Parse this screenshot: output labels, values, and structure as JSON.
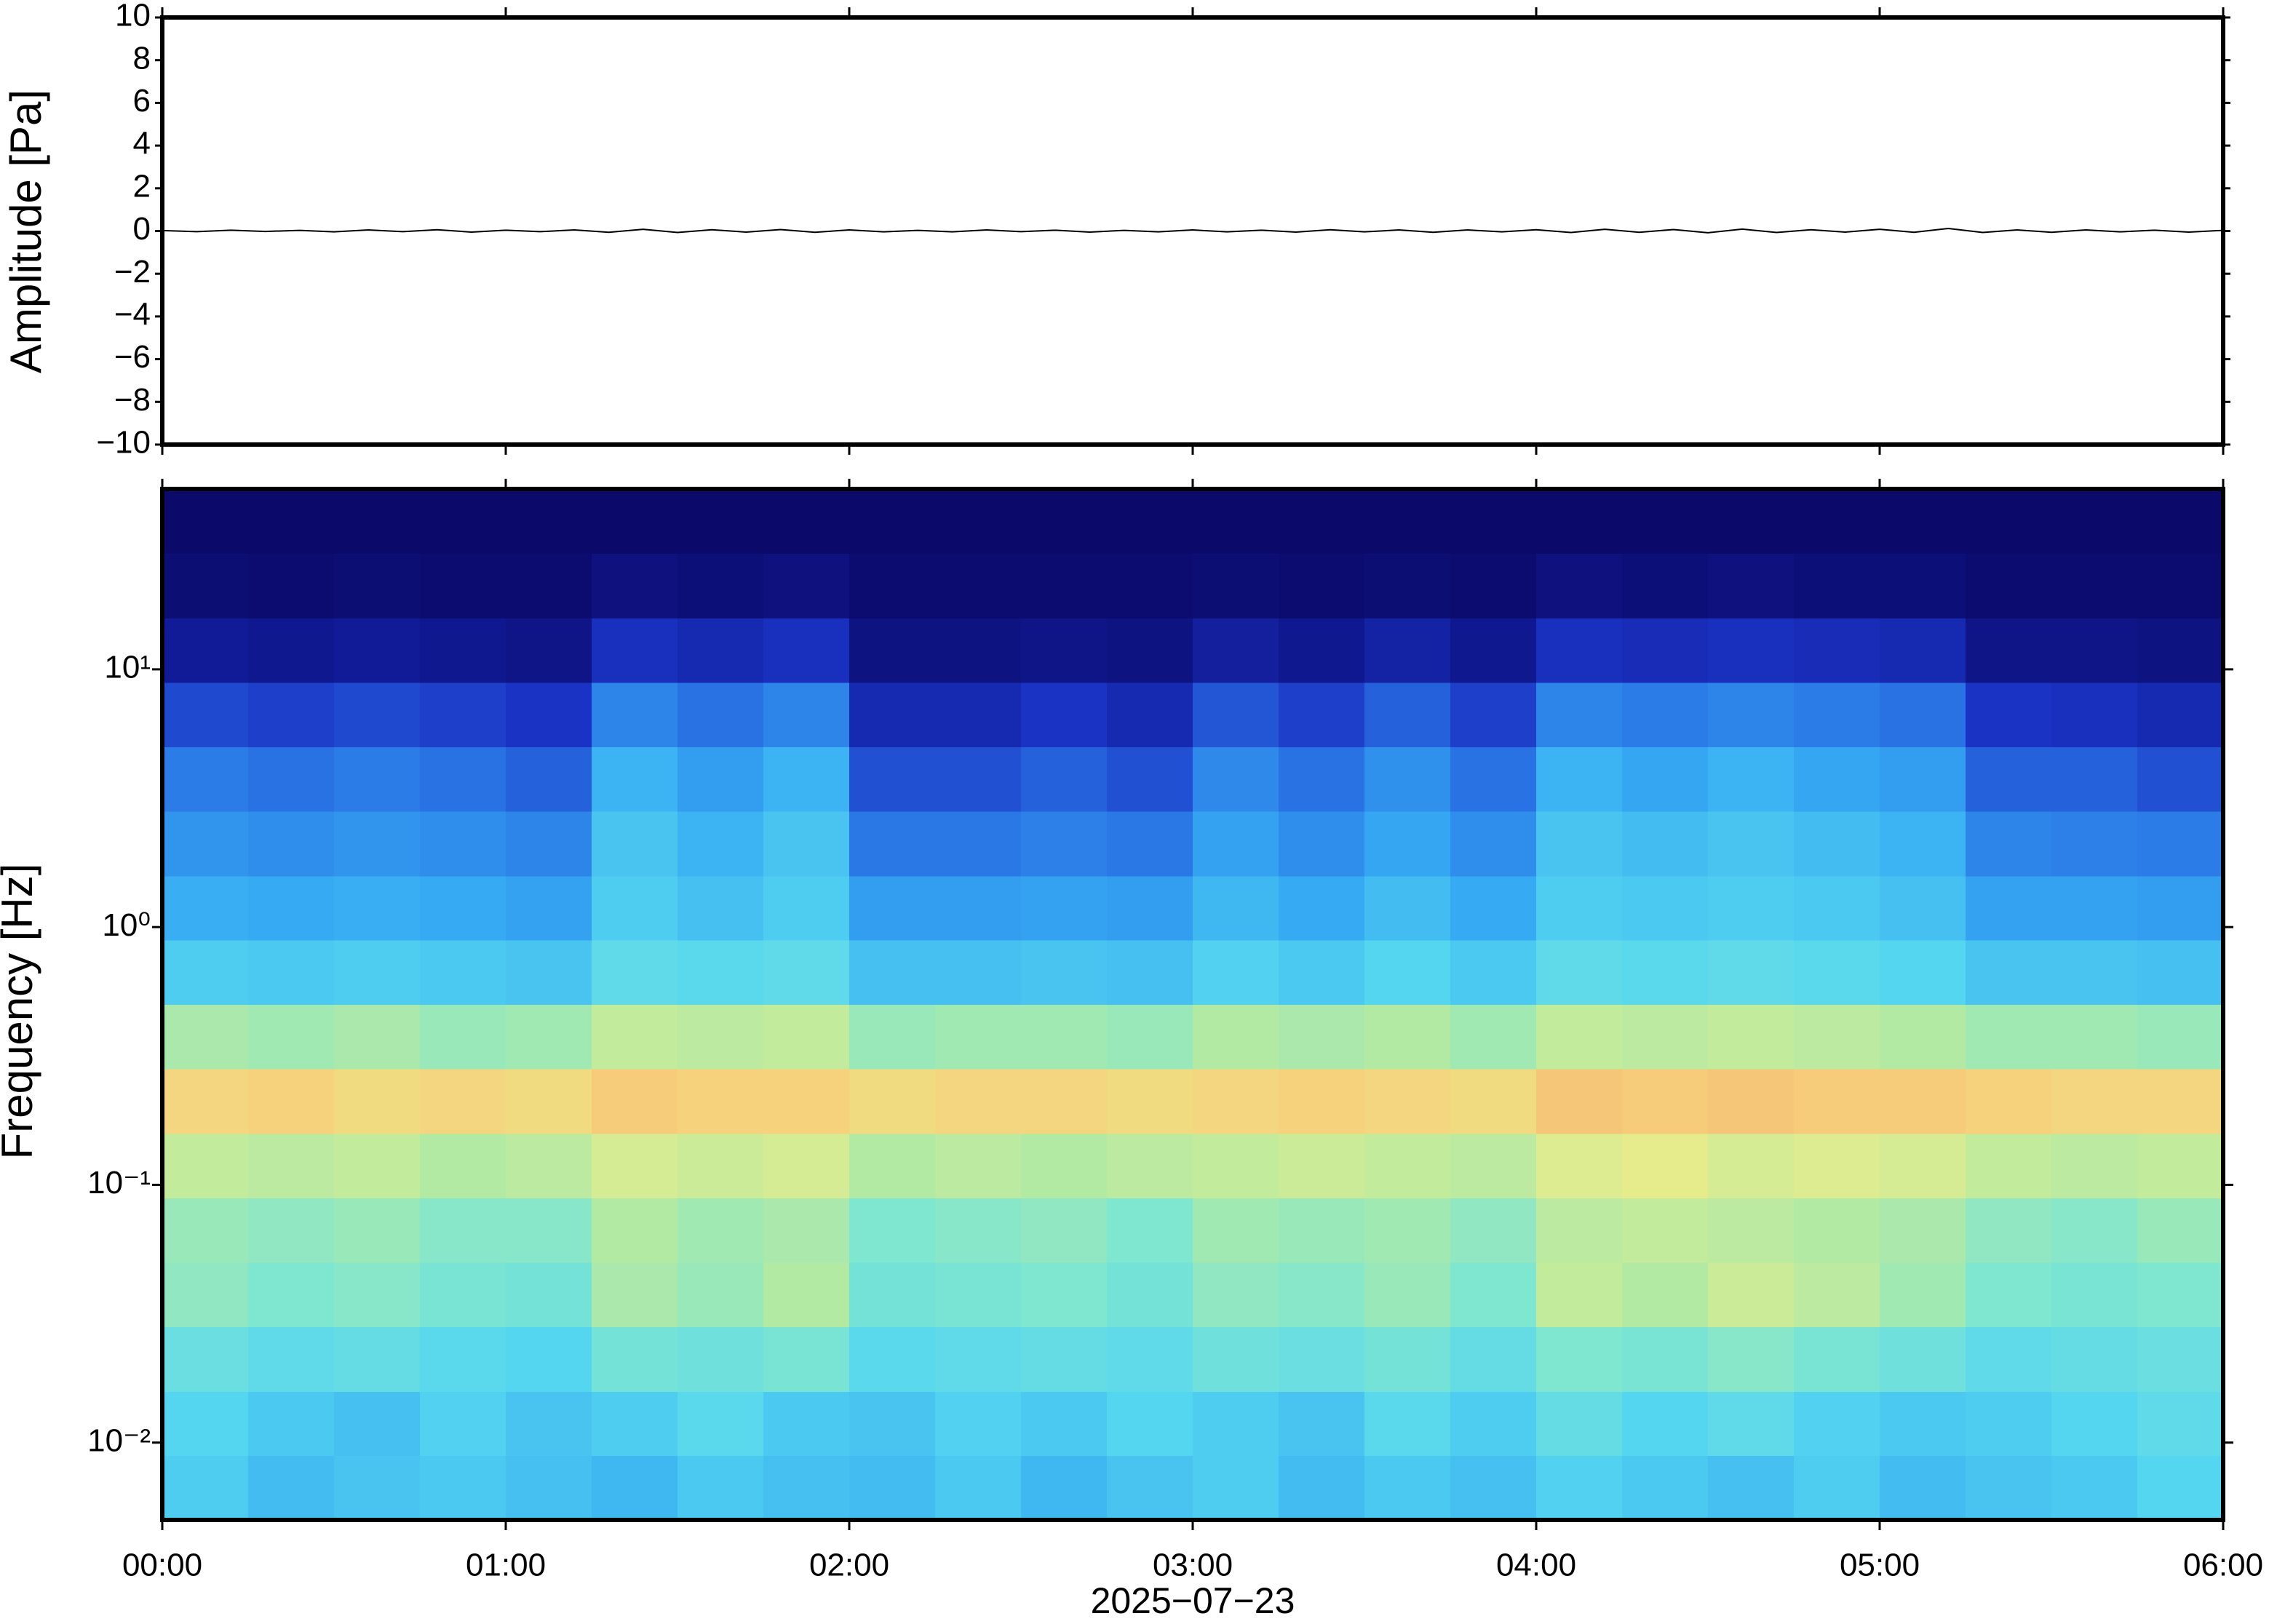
{
  "chart_data": [
    {
      "type": "line",
      "ylabel": "Amplitude [Pa]",
      "xlim": [
        0,
        6
      ],
      "ylim": [
        -10,
        10
      ],
      "yticks": [
        {
          "value": -10,
          "label": "−10"
        },
        {
          "value": -8,
          "label": "−8"
        },
        {
          "value": -6,
          "label": "−6"
        },
        {
          "value": -4,
          "label": "−4"
        },
        {
          "value": -2,
          "label": "−2"
        },
        0,
        2,
        4,
        6,
        8,
        10
      ],
      "x": [
        0,
        0.1,
        0.2,
        0.3,
        0.4,
        0.5,
        0.6,
        0.7,
        0.8,
        0.9,
        1,
        1.1,
        1.2,
        1.3,
        1.4,
        1.5,
        1.6,
        1.7,
        1.8,
        1.9,
        2,
        2.1,
        2.2,
        2.3,
        2.4,
        2.5,
        2.6,
        2.7,
        2.8,
        2.9,
        3,
        3.1,
        3.2,
        3.3,
        3.4,
        3.5,
        3.6,
        3.7,
        3.8,
        3.9,
        4,
        4.1,
        4.2,
        4.3,
        4.4,
        4.5,
        4.6,
        4.7,
        4.8,
        4.9,
        5,
        5.1,
        5.2,
        5.3,
        5.4,
        5.5,
        5.6,
        5.7,
        5.8,
        5.9,
        6
      ],
      "series": [
        {
          "color": "#000000",
          "values": [
            0.02,
            -0.03,
            0.04,
            -0.02,
            0.03,
            -0.04,
            0.05,
            -0.03,
            0.06,
            -0.05,
            0.04,
            -0.03,
            0.05,
            -0.06,
            0.08,
            -0.07,
            0.06,
            -0.05,
            0.07,
            -0.06,
            0.05,
            -0.04,
            0.03,
            -0.04,
            0.05,
            -0.03,
            0.04,
            -0.05,
            0.03,
            -0.04,
            0.05,
            -0.04,
            0.04,
            -0.05,
            0.06,
            -0.04,
            0.05,
            -0.06,
            0.05,
            -0.04,
            0.06,
            -0.07,
            0.08,
            -0.06,
            0.07,
            -0.08,
            0.09,
            -0.07,
            0.06,
            -0.05,
            0.08,
            -0.06,
            0.12,
            -0.07,
            0.05,
            -0.06,
            0.05,
            -0.04,
            0.04,
            -0.05,
            0.03
          ]
        }
      ]
    },
    {
      "type": "heatmap",
      "ylabel": "Frequency [Hz]",
      "xlabel": "2025−07−23",
      "log_y": true,
      "xlim": [
        0,
        6
      ],
      "ylim": [
        0.00501,
        50.1
      ],
      "xticks": [
        {
          "value": 0,
          "label": "00:00"
        },
        {
          "value": 1,
          "label": "01:00"
        },
        {
          "value": 2,
          "label": "02:00"
        },
        {
          "value": 3,
          "label": "03:00"
        },
        {
          "value": 4,
          "label": "04:00"
        },
        {
          "value": 5,
          "label": "05:00"
        },
        {
          "value": 6,
          "label": "06:00"
        }
      ],
      "yticks": [
        {
          "value": 0.01,
          "label": "10⁻²"
        },
        {
          "value": 0.1,
          "label": "10⁻¹"
        },
        {
          "value": 1,
          "label": "10⁰"
        },
        {
          "value": 10,
          "label": "10¹"
        }
      ],
      "x_edges": [
        0,
        0.25,
        0.5,
        0.75,
        1,
        1.25,
        1.5,
        1.75,
        2,
        2.25,
        2.5,
        2.75,
        3,
        3.25,
        3.5,
        3.75,
        4,
        4.25,
        4.5,
        4.75,
        5,
        5.25,
        5.5,
        5.75,
        6
      ],
      "y_edges": [
        0.00501,
        0.00891,
        0.0158,
        0.0282,
        0.0501,
        0.0891,
        0.158,
        0.282,
        0.501,
        0.891,
        1.58,
        2.82,
        5.01,
        8.91,
        15.8,
        28.2,
        50.1
      ],
      "vlim": [
        0,
        100
      ],
      "colorscale": [
        [
          0,
          "#0b0a6b"
        ],
        [
          8,
          "#101890"
        ],
        [
          16,
          "#1a33c4"
        ],
        [
          28,
          "#2a78e6"
        ],
        [
          40,
          "#36aaf2"
        ],
        [
          50,
          "#55d6f0"
        ],
        [
          58,
          "#7fe6d0"
        ],
        [
          64,
          "#b2eaa4"
        ],
        [
          70,
          "#e6ec8c"
        ],
        [
          76,
          "#f6d27c"
        ],
        [
          84,
          "#f2a268"
        ],
        [
          100,
          "#e05a50"
        ]
      ],
      "z": [
        [
          48,
          44,
          46,
          47,
          45,
          43,
          47,
          45,
          44,
          47,
          43,
          46,
          48,
          44,
          47,
          45,
          49,
          47,
          45,
          48,
          44,
          46,
          47,
          50
        ],
        [
          50,
          47,
          45,
          49,
          46,
          48,
          51,
          47,
          46,
          49,
          47,
          50,
          48,
          46,
          51,
          48,
          53,
          50,
          52,
          49,
          47,
          48,
          50,
          52
        ],
        [
          54,
          52,
          53,
          51,
          50,
          56,
          55,
          57,
          51,
          52,
          53,
          52,
          55,
          54,
          56,
          53,
          58,
          57,
          59,
          57,
          55,
          52,
          53,
          54
        ],
        [
          60,
          58,
          59,
          57,
          56,
          63,
          61,
          64,
          56,
          57,
          58,
          56,
          60,
          59,
          61,
          58,
          66,
          64,
          67,
          65,
          62,
          58,
          57,
          58
        ],
        [
          61,
          60,
          61,
          59,
          59,
          64,
          62,
          63,
          58,
          59,
          60,
          58,
          62,
          61,
          62,
          60,
          65,
          66,
          65,
          64,
          63,
          60,
          59,
          61
        ],
        [
          66,
          65,
          66,
          64,
          65,
          68,
          67,
          68,
          64,
          65,
          64,
          65,
          66,
          67,
          66,
          65,
          69,
          70,
          68,
          69,
          68,
          66,
          65,
          66
        ],
        [
          75,
          76,
          74,
          75,
          74,
          77,
          76,
          76,
          74,
          75,
          75,
          74,
          75,
          76,
          75,
          74,
          78,
          77,
          78,
          77,
          77,
          76,
          75,
          75
        ],
        [
          63,
          62,
          63,
          61,
          62,
          66,
          65,
          66,
          61,
          62,
          62,
          61,
          64,
          63,
          64,
          62,
          66,
          65,
          66,
          65,
          64,
          62,
          62,
          61
        ],
        [
          48,
          47,
          48,
          47,
          46,
          52,
          51,
          52,
          45,
          45,
          46,
          45,
          49,
          47,
          50,
          47,
          52,
          51,
          52,
          51,
          50,
          46,
          46,
          45
        ],
        [
          41,
          40,
          41,
          40,
          38,
          48,
          45,
          48,
          37,
          37,
          38,
          37,
          43,
          40,
          44,
          40,
          48,
          47,
          48,
          47,
          45,
          38,
          38,
          37
        ],
        [
          35,
          33,
          35,
          33,
          31,
          46,
          42,
          46,
          28,
          28,
          30,
          28,
          38,
          33,
          39,
          33,
          46,
          44,
          46,
          44,
          42,
          31,
          30,
          29
        ],
        [
          29,
          27,
          29,
          27,
          24,
          42,
          37,
          42,
          21,
          21,
          24,
          21,
          32,
          27,
          34,
          27,
          42,
          39,
          42,
          39,
          37,
          24,
          24,
          21
        ],
        [
          20,
          18,
          20,
          18,
          16,
          31,
          27,
          31,
          13,
          13,
          16,
          13,
          22,
          18,
          24,
          18,
          31,
          29,
          31,
          29,
          27,
          16,
          15,
          13
        ],
        [
          9,
          8,
          9,
          8,
          6,
          15,
          13,
          15,
          5,
          5,
          6,
          5,
          10,
          8,
          11,
          8,
          15,
          14,
          15,
          14,
          13,
          6,
          6,
          5
        ],
        [
          2,
          1,
          2,
          1,
          1,
          4,
          3,
          4,
          1,
          1,
          1,
          1,
          2,
          1,
          2,
          1,
          4,
          3,
          4,
          3,
          3,
          1,
          1,
          1
        ],
        [
          0,
          0,
          0,
          0,
          0,
          0,
          0,
          0,
          0,
          0,
          0,
          0,
          0,
          0,
          0,
          0,
          0,
          0,
          0,
          0,
          0,
          0,
          0,
          0
        ]
      ]
    }
  ]
}
